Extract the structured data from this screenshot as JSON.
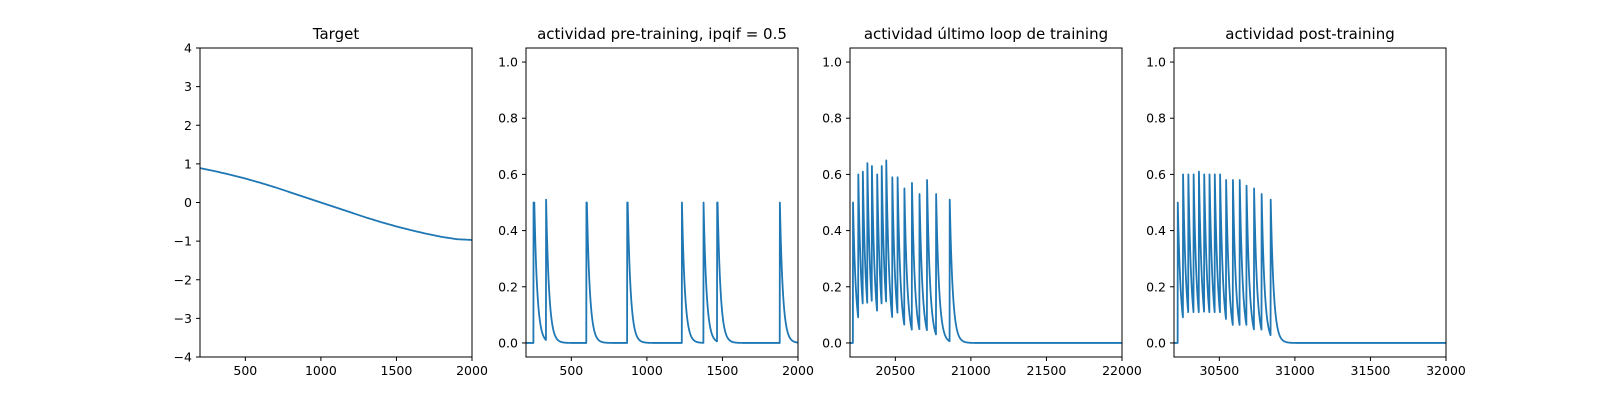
{
  "chart_data": [
    {
      "type": "line",
      "title": "Target",
      "xlim": [
        200,
        2000
      ],
      "ylim": [
        -4,
        4
      ],
      "xticks": [
        500,
        1000,
        1500,
        2000
      ],
      "yticks": [
        -4,
        -3,
        -2,
        -1,
        0,
        1,
        2,
        3,
        4
      ],
      "xtick_labels": [
        "500",
        "1000",
        "1500",
        "2000"
      ],
      "ytick_labels": [
        "−4",
        "−3",
        "−2",
        "−1",
        "0",
        "1",
        "2",
        "3",
        "4"
      ],
      "color": "#1f77b4",
      "series": [
        {
          "x": [
            200,
            300,
            400,
            500,
            600,
            700,
            800,
            900,
            1000,
            1100,
            1200,
            1300,
            1400,
            1500,
            1600,
            1700,
            1800,
            1900,
            2000
          ],
          "y": [
            0.89,
            0.81,
            0.72,
            0.62,
            0.51,
            0.39,
            0.26,
            0.13,
            0.0,
            -0.13,
            -0.26,
            -0.39,
            -0.51,
            -0.62,
            -0.72,
            -0.81,
            -0.89,
            -0.95,
            -0.97
          ]
        }
      ]
    },
    {
      "type": "line",
      "title": "actividad pre-training, ipqif = 0.5",
      "xlim": [
        200,
        2000
      ],
      "ylim": [
        -0.05,
        1.05
      ],
      "xticks": [
        500,
        1000,
        1500,
        2000
      ],
      "yticks": [
        0.0,
        0.2,
        0.4,
        0.6,
        0.8,
        1.0
      ],
      "xtick_labels": [
        "500",
        "1000",
        "1500",
        "2000"
      ],
      "ytick_labels": [
        "0.0",
        "0.2",
        "0.4",
        "0.6",
        "0.8",
        "1.0"
      ],
      "color": "#1f77b4",
      "spike_train": {
        "baseline": 0.0,
        "decay_tau": 20,
        "spikes": [
          {
            "t": 250,
            "amp": 0.5
          },
          {
            "t": 255,
            "amp": 0.5
          },
          {
            "t": 333,
            "amp": 0.51
          },
          {
            "t": 600,
            "amp": 0.5
          },
          {
            "t": 603,
            "amp": 0.5
          },
          {
            "t": 870,
            "amp": 0.5
          },
          {
            "t": 873,
            "amp": 0.5
          },
          {
            "t": 1232,
            "amp": 0.5
          },
          {
            "t": 1375,
            "amp": 0.5
          },
          {
            "t": 1465,
            "amp": 0.5
          },
          {
            "t": 1468,
            "amp": 0.5
          },
          {
            "t": 1880,
            "amp": 0.5
          }
        ]
      }
    },
    {
      "type": "line",
      "title": "actividad último loop de training",
      "xlim": [
        20200,
        22000
      ],
      "ylim": [
        -0.05,
        1.05
      ],
      "xticks": [
        20500,
        21000,
        21500,
        22000
      ],
      "yticks": [
        0.0,
        0.2,
        0.4,
        0.6,
        0.8,
        1.0
      ],
      "xtick_labels": [
        "20500",
        "21000",
        "21500",
        "22000"
      ],
      "ytick_labels": [
        "0.0",
        "0.2",
        "0.4",
        "0.6",
        "0.8",
        "1.0"
      ],
      "color": "#1f77b4",
      "spike_train": {
        "baseline": 0.0,
        "decay_tau": 20,
        "spikes": [
          {
            "t": 20220,
            "amp": 0.5
          },
          {
            "t": 20255,
            "amp": 0.6
          },
          {
            "t": 20285,
            "amp": 0.61
          },
          {
            "t": 20315,
            "amp": 0.64
          },
          {
            "t": 20345,
            "amp": 0.63
          },
          {
            "t": 20380,
            "amp": 0.6
          },
          {
            "t": 20410,
            "amp": 0.63
          },
          {
            "t": 20440,
            "amp": 0.65
          },
          {
            "t": 20480,
            "amp": 0.59
          },
          {
            "t": 20515,
            "amp": 0.59
          },
          {
            "t": 20560,
            "amp": 0.55
          },
          {
            "t": 20610,
            "amp": 0.57
          },
          {
            "t": 20660,
            "amp": 0.53
          },
          {
            "t": 20710,
            "amp": 0.58
          },
          {
            "t": 20770,
            "amp": 0.53
          },
          {
            "t": 20860,
            "amp": 0.51
          }
        ]
      }
    },
    {
      "type": "line",
      "title": "actividad post-training",
      "xlim": [
        30200,
        32000
      ],
      "ylim": [
        -0.05,
        1.05
      ],
      "xticks": [
        30500,
        31000,
        31500,
        32000
      ],
      "yticks": [
        0.0,
        0.2,
        0.4,
        0.6,
        0.8,
        1.0
      ],
      "xtick_labels": [
        "30500",
        "31000",
        "31500",
        "32000"
      ],
      "ytick_labels": [
        "0.0",
        "0.2",
        "0.4",
        "0.6",
        "0.8",
        "1.0"
      ],
      "color": "#1f77b4",
      "spike_train": {
        "baseline": 0.0,
        "decay_tau": 20,
        "spikes": [
          {
            "t": 30225,
            "amp": 0.5
          },
          {
            "t": 30260,
            "amp": 0.6
          },
          {
            "t": 30295,
            "amp": 0.6
          },
          {
            "t": 30330,
            "amp": 0.6
          },
          {
            "t": 30365,
            "amp": 0.61
          },
          {
            "t": 30400,
            "amp": 0.6
          },
          {
            "t": 30435,
            "amp": 0.6
          },
          {
            "t": 30470,
            "amp": 0.6
          },
          {
            "t": 30505,
            "amp": 0.6
          },
          {
            "t": 30545,
            "amp": 0.58
          },
          {
            "t": 30590,
            "amp": 0.58
          },
          {
            "t": 30635,
            "amp": 0.58
          },
          {
            "t": 30680,
            "amp": 0.56
          },
          {
            "t": 30730,
            "amp": 0.55
          },
          {
            "t": 30780,
            "amp": 0.53
          },
          {
            "t": 30840,
            "amp": 0.51
          }
        ]
      }
    }
  ]
}
